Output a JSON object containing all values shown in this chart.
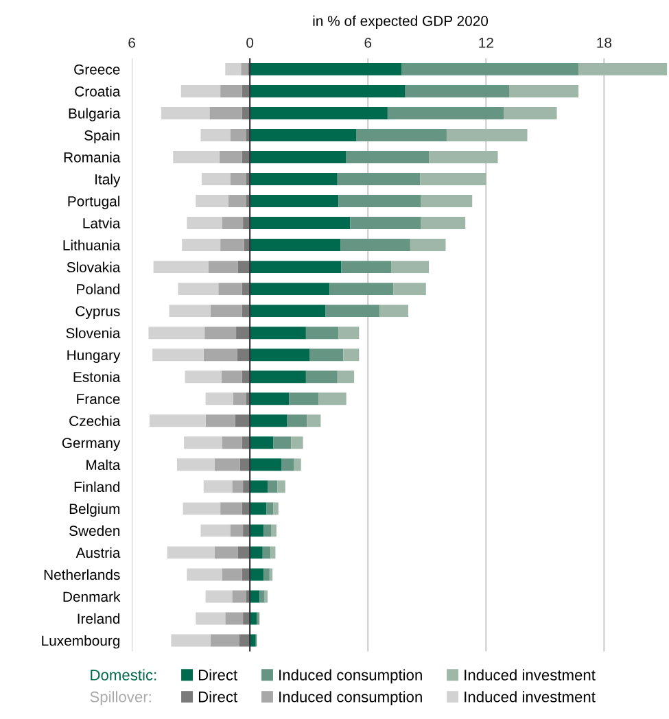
{
  "chart_data": {
    "type": "bar",
    "orientation": "horizontal",
    "stacked": true,
    "xlabel": "in % of expected GDP 2020",
    "categories": [
      "Greece",
      "Croatia",
      "Bulgaria",
      "Spain",
      "Romania",
      "Italy",
      "Portugal",
      "Latvia",
      "Lithuania",
      "Slovakia",
      "Poland",
      "Cyprus",
      "Slovenia",
      "Hungary",
      "Estonia",
      "France",
      "Czechia",
      "Germany",
      "Malta",
      "Finland",
      "Belgium",
      "Sweden",
      "Austria",
      "Netherlands",
      "Denmark",
      "Ireland",
      "Luxembourg"
    ],
    "series": [
      {
        "name": "Direct",
        "color": "#006a4e",
        "values": [
          7.7,
          7.9,
          7.0,
          5.4,
          4.9,
          4.45,
          4.5,
          5.1,
          4.6,
          4.65,
          4.05,
          3.85,
          2.85,
          3.05,
          2.85,
          2.0,
          1.9,
          1.2,
          1.6,
          0.9,
          0.85,
          0.7,
          0.65,
          0.7,
          0.5,
          0.35,
          0.3
        ]
      },
      {
        "name": "Induced consumption",
        "color": "#669584",
        "values": [
          9.0,
          5.3,
          5.9,
          4.6,
          4.2,
          4.2,
          4.2,
          3.6,
          3.55,
          2.55,
          3.25,
          2.75,
          1.65,
          1.7,
          1.6,
          1.5,
          1.0,
          0.9,
          0.65,
          0.5,
          0.35,
          0.4,
          0.4,
          0.3,
          0.25,
          0.1,
          0.05
        ]
      },
      {
        "name": "Induced investment",
        "color": "#9fb7a8",
        "values": [
          4.5,
          3.5,
          2.7,
          4.1,
          3.5,
          3.35,
          2.6,
          2.25,
          1.8,
          1.9,
          1.65,
          1.45,
          1.05,
          0.8,
          0.85,
          1.4,
          0.7,
          0.6,
          0.35,
          0.4,
          0.25,
          0.25,
          0.25,
          0.15,
          0.15,
          0.05,
          0.0
        ]
      },
      {
        "name": "Direct",
        "color": "#7a7a7a",
        "values": [
          -0.1,
          -0.4,
          -0.4,
          -0.2,
          -0.4,
          -0.2,
          -0.2,
          -0.35,
          -0.3,
          -0.6,
          -0.4,
          -0.4,
          -0.7,
          -0.65,
          -0.4,
          -0.2,
          -0.75,
          -0.4,
          -0.5,
          -0.35,
          -0.4,
          -0.35,
          -0.6,
          -0.4,
          -0.2,
          -0.35,
          -0.55
        ]
      },
      {
        "name": "Induced consumption",
        "color": "#a8a8a8",
        "values": [
          -0.35,
          -1.1,
          -1.65,
          -0.8,
          -1.15,
          -0.8,
          -0.9,
          -1.05,
          -1.2,
          -1.5,
          -1.2,
          -1.6,
          -1.6,
          -1.7,
          -1.05,
          -0.65,
          -1.5,
          -1.0,
          -1.3,
          -0.55,
          -1.1,
          -0.65,
          -1.2,
          -1.0,
          -0.7,
          -0.9,
          -1.45
        ]
      },
      {
        "name": "Induced investment",
        "color": "#d2d2d2",
        "values": [
          -0.8,
          -2.0,
          -2.45,
          -1.5,
          -2.35,
          -1.45,
          -1.65,
          -1.8,
          -1.95,
          -2.8,
          -2.05,
          -2.1,
          -2.85,
          -2.6,
          -1.85,
          -1.4,
          -2.85,
          -1.95,
          -1.9,
          -1.45,
          -1.9,
          -1.5,
          -2.4,
          -1.8,
          -1.35,
          -1.5,
          -2.0
        ]
      }
    ],
    "xlim": [
      -6,
      21.3
    ],
    "xticks": [
      {
        "value": -6,
        "label": "6"
      },
      0,
      6,
      12,
      18
    ],
    "grid": "x",
    "legend": "bottom",
    "annotations": [
      "Domestic:",
      "Spillover:"
    ]
  }
}
